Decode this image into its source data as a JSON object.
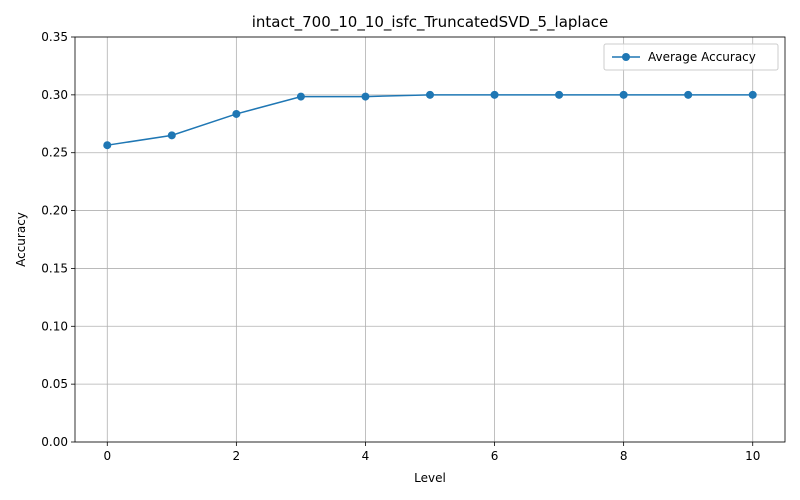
{
  "chart_data": {
    "type": "line",
    "title": "intact_700_10_10_isfc_TruncatedSVD_5_laplace",
    "xlabel": "Level",
    "ylabel": "Accuracy",
    "x": [
      0,
      1,
      2,
      3,
      4,
      5,
      6,
      7,
      8,
      9,
      10
    ],
    "xlim": [
      -0.5,
      10.5
    ],
    "ylim": [
      0.0,
      0.35
    ],
    "xticks": [
      0,
      2,
      4,
      6,
      8,
      10
    ],
    "xtick_labels": [
      "0",
      "2",
      "4",
      "6",
      "8",
      "10"
    ],
    "yticks": [
      0.0,
      0.05,
      0.1,
      0.15,
      0.2,
      0.25,
      0.3,
      0.35
    ],
    "ytick_labels": [
      "0.00",
      "0.05",
      "0.10",
      "0.15",
      "0.20",
      "0.25",
      "0.30",
      "0.35"
    ],
    "grid": true,
    "legend_position": "top-right",
    "series": [
      {
        "name": "Average Accuracy",
        "color": "#1f77b4",
        "marker": "circle",
        "values": [
          0.2565,
          0.265,
          0.2835,
          0.2985,
          0.2985,
          0.3,
          0.3,
          0.3,
          0.3,
          0.3,
          0.3
        ]
      }
    ]
  }
}
